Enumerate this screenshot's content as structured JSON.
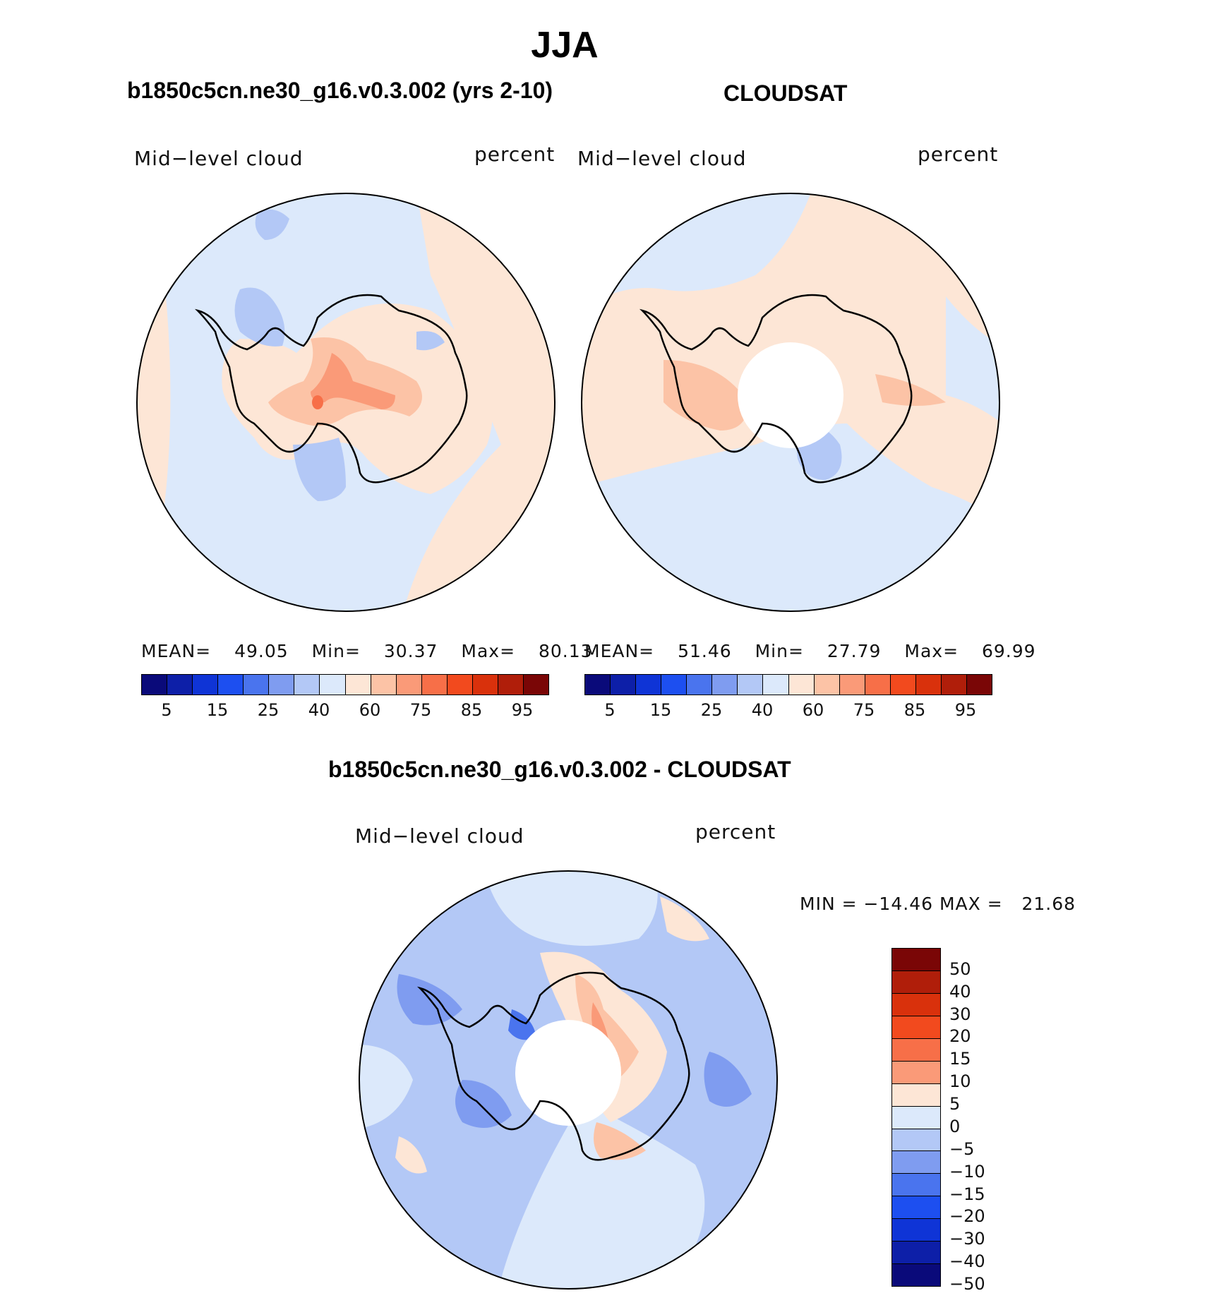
{
  "figure": {
    "season": "JJA",
    "panel_left_title": "b1850c5cn.ne30_g16.v0.3.002 (yrs 2-10)",
    "panel_right_title": "CLOUDSAT",
    "panel_diff_title": "b1850c5cn.ne30_g16.v0.3.002 - CLOUDSAT"
  },
  "panels": {
    "left": {
      "variable": "Mid−level cloud",
      "units": "percent",
      "stats": {
        "mean_label": "MEAN=",
        "mean": "49.05",
        "min_label": "Min=",
        "min": "30.37",
        "max_label": "Max=",
        "max": "80.13"
      }
    },
    "right": {
      "variable": "Mid−level cloud",
      "units": "percent",
      "stats": {
        "mean_label": "MEAN=",
        "mean": "51.46",
        "min_label": "Min=",
        "min": "27.79",
        "max_label": "Max=",
        "max": "69.99"
      }
    },
    "diff": {
      "variable": "Mid−level cloud",
      "units": "percent",
      "stats_text": "MIN = −14.46 MAX =   21.68"
    }
  },
  "colorbar_abs": {
    "colors": [
      "#0a0a7a",
      "#0d1fa8",
      "#0f34d6",
      "#1d4ff0",
      "#4a74ee",
      "#7f9cf0",
      "#b3c8f6",
      "#dce9fb",
      "#fde6d6",
      "#fcc3a6",
      "#fa9a78",
      "#f76f48",
      "#f24a1e",
      "#d9310c",
      "#b01e0a",
      "#7a0606"
    ],
    "labels": [
      "5",
      "15",
      "25",
      "40",
      "60",
      "75",
      "85",
      "95"
    ]
  },
  "colorbar_diff": {
    "colors": [
      "#7a0606",
      "#b01e0a",
      "#d9310c",
      "#f24a1e",
      "#f76f48",
      "#fa9a78",
      "#fde6d6",
      "#dce9fb",
      "#b3c8f6",
      "#7f9cf0",
      "#4a74ee",
      "#1d4ff0",
      "#0f34d6",
      "#0d1fa8",
      "#0a0a7a"
    ],
    "labels": [
      "50",
      "40",
      "30",
      "20",
      "15",
      "10",
      "5",
      "0",
      "−5",
      "−10",
      "−15",
      "−20",
      "−30",
      "−40",
      "−50"
    ]
  }
}
